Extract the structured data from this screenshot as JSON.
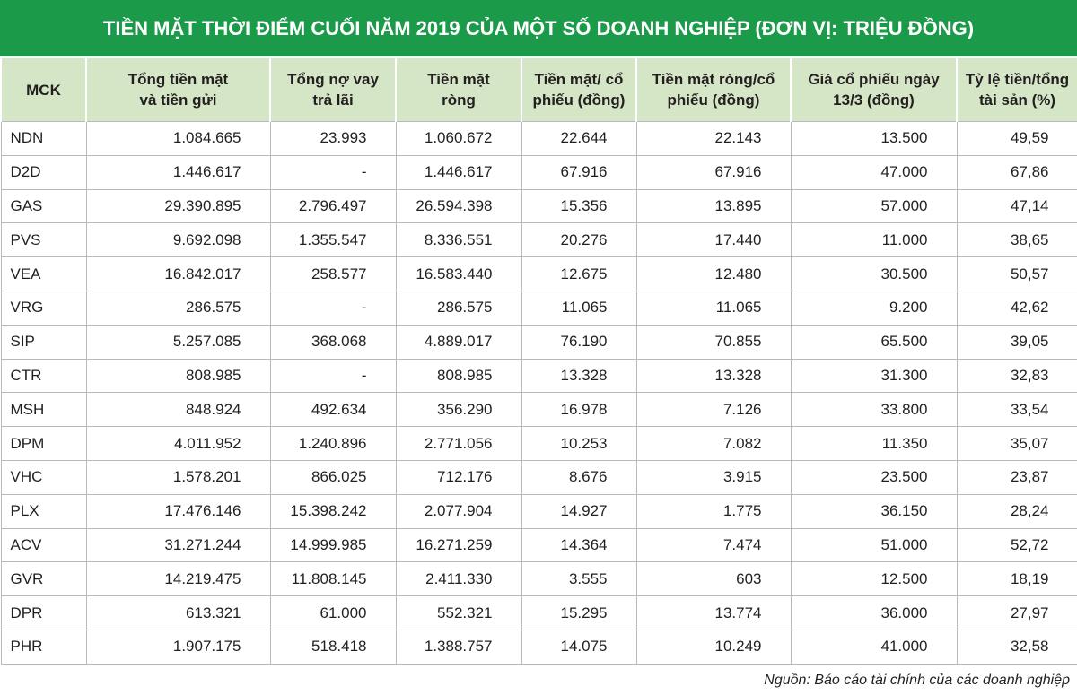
{
  "title": "TIỀN MẶT THỜI ĐIỂM CUỐI NĂM 2019 CỦA MỘT SỐ DOANH NGHIỆP (ĐƠN VỊ: TRIỆU ĐỒNG)",
  "table": {
    "headers": [
      [
        "MCK"
      ],
      [
        "Tổng tiền mặt",
        "và tiền gửi"
      ],
      [
        "Tổng nợ vay",
        "trả lãi"
      ],
      [
        "Tiền mặt",
        "ròng"
      ],
      [
        "Tiền mặt/ cổ",
        "phiếu (đồng)"
      ],
      [
        "Tiền mặt ròng/cổ",
        "phiếu (đồng)"
      ],
      [
        "Giá cổ phiếu ngày",
        "13/3 (đồng)"
      ],
      [
        "Tỷ lệ tiền/tổng",
        "tài sản (%)"
      ]
    ],
    "rows": [
      [
        "NDN",
        "1.084.665",
        "23.993",
        "1.060.672",
        "22.644",
        "22.143",
        "13.500",
        "49,59"
      ],
      [
        "D2D",
        "1.446.617",
        "-",
        "1.446.617",
        "67.916",
        "67.916",
        "47.000",
        "67,86"
      ],
      [
        "GAS",
        "29.390.895",
        "2.796.497",
        "26.594.398",
        "15.356",
        "13.895",
        "57.000",
        "47,14"
      ],
      [
        "PVS",
        "9.692.098",
        "1.355.547",
        "8.336.551",
        "20.276",
        "17.440",
        "11.000",
        "38,65"
      ],
      [
        "VEA",
        "16.842.017",
        "258.577",
        "16.583.440",
        "12.675",
        "12.480",
        "30.500",
        "50,57"
      ],
      [
        "VRG",
        "286.575",
        "-",
        "286.575",
        "11.065",
        "11.065",
        "9.200",
        "42,62"
      ],
      [
        "SIP",
        "5.257.085",
        "368.068",
        "4.889.017",
        "76.190",
        "70.855",
        "65.500",
        "39,05"
      ],
      [
        "CTR",
        "808.985",
        "-",
        "808.985",
        "13.328",
        "13.328",
        "31.300",
        "32,83"
      ],
      [
        "MSH",
        "848.924",
        "492.634",
        "356.290",
        "16.978",
        "7.126",
        "33.800",
        "33,54"
      ],
      [
        "DPM",
        "4.011.952",
        "1.240.896",
        "2.771.056",
        "10.253",
        "7.082",
        "11.350",
        "35,07"
      ],
      [
        "VHC",
        "1.578.201",
        "866.025",
        "712.176",
        "8.676",
        "3.915",
        "23.500",
        "23,87"
      ],
      [
        "PLX",
        "17.476.146",
        "15.398.242",
        "2.077.904",
        "14.927",
        "1.775",
        "36.150",
        "28,24"
      ],
      [
        "ACV",
        "31.271.244",
        "14.999.985",
        "16.271.259",
        "14.364",
        "7.474",
        "51.000",
        "52,72"
      ],
      [
        "GVR",
        "14.219.475",
        "11.808.145",
        "2.411.330",
        "3.555",
        "603",
        "12.500",
        "18,19"
      ],
      [
        "DPR",
        "613.321",
        "61.000",
        "552.321",
        "15.295",
        "13.774",
        "36.000",
        "27,97"
      ],
      [
        "PHR",
        "1.907.175",
        "518.418",
        "1.388.757",
        "14.075",
        "10.249",
        "41.000",
        "32,58"
      ]
    ]
  },
  "source": "Nguồn: Báo cáo tài chính của các doanh nghiệp"
}
